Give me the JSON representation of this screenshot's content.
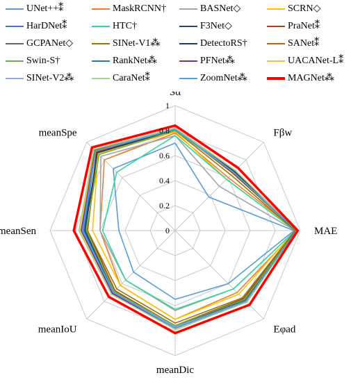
{
  "chart_data": {
    "type": "radar",
    "axes": [
      "Sα",
      "Fβw",
      "MAE",
      "Eφad",
      "meanDic",
      "meanIoU",
      "meanSen",
      "meanSpe"
    ],
    "ticks": [
      "0",
      "0.2",
      "0.4",
      "0.6",
      "0.8",
      "1"
    ],
    "range": [
      0,
      1
    ],
    "legend_position": "top",
    "series": [
      {
        "name": "UNet++⁑",
        "color": "#5b9bd5",
        "values": [
          0.7,
          0.38,
          0.95,
          0.6,
          0.55,
          0.47,
          0.45,
          0.7
        ]
      },
      {
        "name": "MaskRCNN†",
        "color": "#ed7d31",
        "values": [
          0.78,
          0.6,
          0.97,
          0.7,
          0.71,
          0.62,
          0.6,
          0.8
        ]
      },
      {
        "name": "BASNet◇",
        "color": "#a5a5a5",
        "values": [
          0.76,
          0.5,
          0.96,
          0.66,
          0.64,
          0.56,
          0.6,
          0.84
        ]
      },
      {
        "name": "SCRN◇",
        "color": "#ffc000",
        "values": [
          0.79,
          0.58,
          0.96,
          0.72,
          0.71,
          0.62,
          0.66,
          0.87
        ]
      },
      {
        "name": "HarDNet⁑",
        "color": "#4472c4",
        "values": [
          0.82,
          0.67,
          0.97,
          0.8,
          0.79,
          0.71,
          0.75,
          0.9
        ]
      },
      {
        "name": "HTC†",
        "color": "#33d6a0",
        "values": [
          0.76,
          0.58,
          0.96,
          0.66,
          0.63,
          0.56,
          0.58,
          0.66
        ]
      },
      {
        "name": "F3Net◇",
        "color": "#264478",
        "values": [
          0.82,
          0.66,
          0.97,
          0.79,
          0.77,
          0.7,
          0.72,
          0.91
        ]
      },
      {
        "name": "PraNet⁑",
        "color": "#9e480e",
        "values": [
          0.81,
          0.65,
          0.97,
          0.77,
          0.76,
          0.68,
          0.7,
          0.89
        ]
      },
      {
        "name": "GCPANet◇",
        "color": "#636363",
        "values": [
          0.82,
          0.66,
          0.97,
          0.79,
          0.77,
          0.7,
          0.73,
          0.9
        ]
      },
      {
        "name": "SINet-V1⁂",
        "color": "#997300",
        "values": [
          0.8,
          0.63,
          0.96,
          0.76,
          0.74,
          0.66,
          0.7,
          0.88
        ]
      },
      {
        "name": "DetectoRS†",
        "color": "#203864",
        "values": [
          0.81,
          0.67,
          0.97,
          0.78,
          0.77,
          0.7,
          0.72,
          0.88
        ]
      },
      {
        "name": "SANet⁑",
        "color": "#c55a11",
        "values": [
          0.82,
          0.68,
          0.97,
          0.81,
          0.78,
          0.71,
          0.76,
          0.91
        ]
      },
      {
        "name": "Swin-S†",
        "color": "#70ad47",
        "values": [
          0.8,
          0.66,
          0.97,
          0.78,
          0.76,
          0.69,
          0.71,
          0.86
        ]
      },
      {
        "name": "RankNet⁂",
        "color": "#2e75b6",
        "values": [
          0.81,
          0.66,
          0.97,
          0.8,
          0.77,
          0.7,
          0.73,
          0.9
        ]
      },
      {
        "name": "PFNet⁂",
        "color": "#7030a0",
        "values": [
          0.82,
          0.66,
          0.97,
          0.8,
          0.78,
          0.71,
          0.75,
          0.9
        ]
      },
      {
        "name": "UACANet-L⁑",
        "color": "#f4c430",
        "values": [
          0.82,
          0.68,
          0.97,
          0.81,
          0.79,
          0.72,
          0.76,
          0.92
        ]
      },
      {
        "name": "SINet-V2⁂",
        "color": "#8faadc",
        "values": [
          0.82,
          0.66,
          0.97,
          0.8,
          0.77,
          0.7,
          0.74,
          0.9
        ]
      },
      {
        "name": "CaraNet⁑",
        "color": "#a9d18e",
        "values": [
          0.82,
          0.68,
          0.97,
          0.81,
          0.79,
          0.72,
          0.77,
          0.92
        ]
      },
      {
        "name": "ZoomNet⁂",
        "color": "#4aa3df",
        "values": [
          0.81,
          0.66,
          0.97,
          0.8,
          0.78,
          0.7,
          0.74,
          0.9
        ]
      },
      {
        "name": "MAGNet⁂",
        "color": "#ff0000",
        "values": [
          0.84,
          0.71,
          0.98,
          0.84,
          0.82,
          0.75,
          0.81,
          0.94
        ]
      }
    ]
  }
}
